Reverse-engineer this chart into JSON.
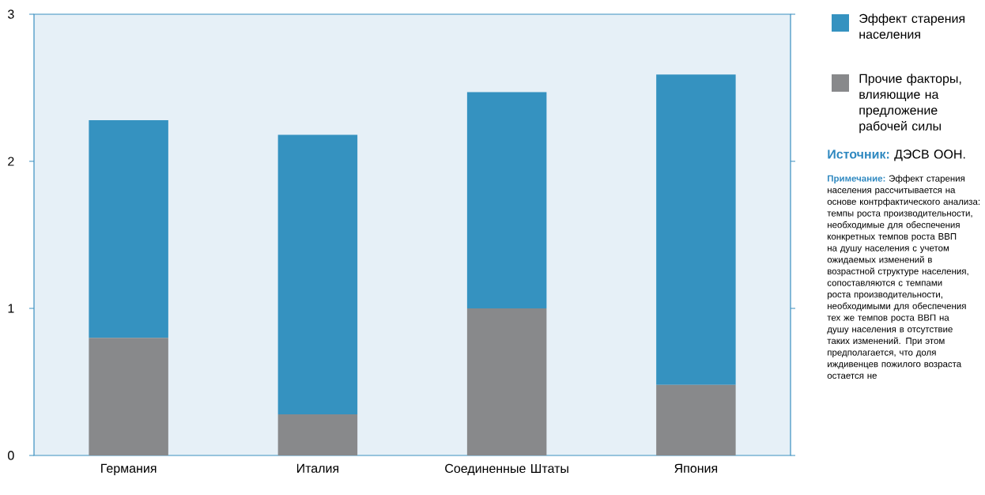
{
  "chart_data": {
    "type": "bar",
    "stacked": true,
    "categories": [
      "Германия",
      "Италия",
      "Соединенные Штаты",
      "Япония"
    ],
    "series": [
      {
        "name": "Прочие факторы, влияющие на предложение рабочей силы",
        "color": "#88898b",
        "values": [
          0.8,
          0.28,
          1.0,
          0.48
        ]
      },
      {
        "name": "Эффект старения населения",
        "color": "#3592c0",
        "values": [
          1.48,
          1.9,
          1.47,
          2.11
        ]
      }
    ],
    "ylim": [
      0,
      3
    ],
    "yticks": [
      0,
      1,
      2,
      3
    ],
    "legend": "right",
    "grid": false,
    "annotations": [
      "Источник:",
      "ДЭСВ ООН.",
      "Примечание:",
      "Эффект старения населения рассчитывается на основе контрфактического анализа: темпы роста производительности, необходимые для обеспечения конкретных темпов роста ВВП на душу населения с учетом ожидаемых изменений в возрастной структуре населения, сопоставляются с темпами роста производительности, необходимыми для обеспечения тех же темпов роста ВВП на душу населения в отсутствие таких изменений. При этом предполагается, что доля иждивенцев пожилого возраста остается не"
    ]
  }
}
